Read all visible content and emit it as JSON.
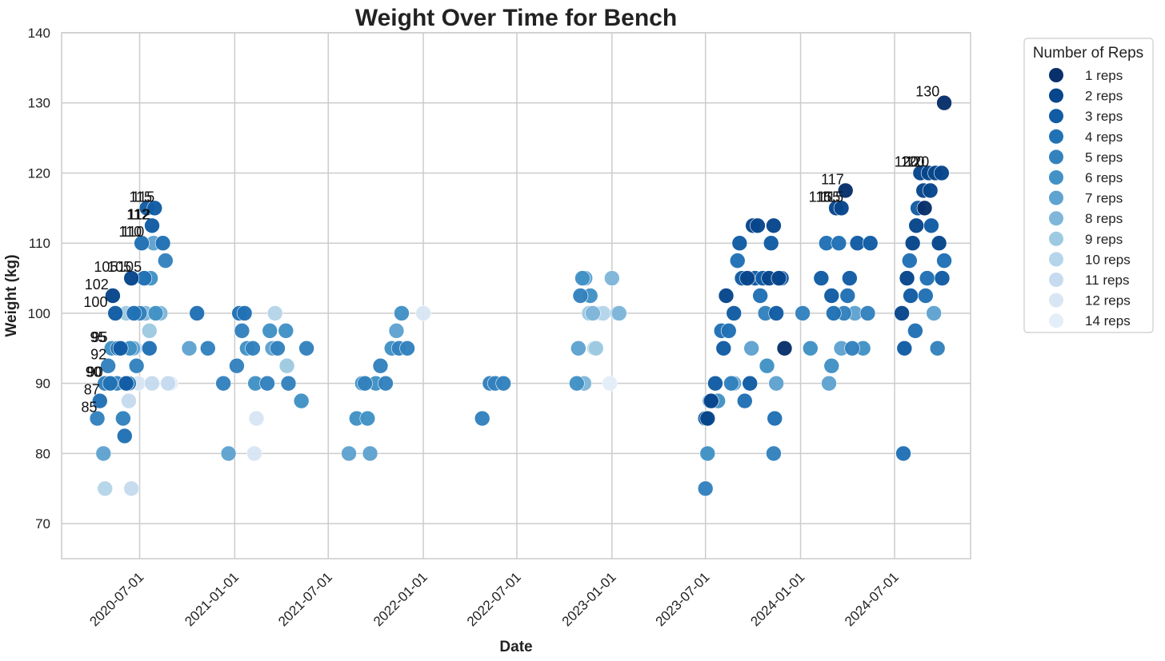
{
  "chart_data": {
    "type": "scatter",
    "title": "Weight Over Time for Bench",
    "xlabel": "Date",
    "ylabel": "Weight (kg)",
    "xlim": [
      "2020-02-01",
      "2024-11-25"
    ],
    "ylim": [
      65,
      140
    ],
    "x_ticks": [
      "2020-07-01",
      "2021-01-01",
      "2021-07-01",
      "2022-01-01",
      "2022-07-01",
      "2023-01-01",
      "2023-07-01",
      "2024-01-01",
      "2024-07-01"
    ],
    "y_ticks": [
      70,
      80,
      90,
      100,
      110,
      120,
      130,
      140
    ],
    "grid": true,
    "legend": {
      "title": "Number of Reps",
      "placement": "outside-right",
      "entries": [
        "1 reps",
        "2 reps",
        "3 reps",
        "4 reps",
        "5 reps",
        "6 reps",
        "7 reps",
        "8 reps",
        "9 reps",
        "10 reps",
        "11 reps",
        "12 reps",
        "14 reps"
      ]
    },
    "colors": {
      "1": "#08306b",
      "2": "#08468c",
      "3": "#115ca5",
      "4": "#2171b5",
      "5": "#3382be",
      "6": "#4292c6",
      "7": "#5fa3d0",
      "8": "#7fb6da",
      "9": "#9ecae1",
      "10": "#b5d5ea",
      "11": "#c6dbef",
      "12": "#d8e6f4",
      "14": "#e4eef8"
    },
    "series": [
      {
        "name": "1 reps",
        "reps": 1,
        "points": [
          [
            "2024-10-05",
            130
          ],
          [
            "2024-08-28",
            115
          ],
          [
            "2024-03-28",
            117.5
          ],
          [
            "2023-12-01",
            95
          ]
        ]
      },
      {
        "name": "2 reps",
        "reps": 2,
        "points": [
          [
            "2020-05-10",
            102.5
          ],
          [
            "2020-06-15",
            105
          ],
          [
            "2023-07-05",
            85
          ],
          [
            "2023-07-12",
            87.5
          ],
          [
            "2023-08-10",
            102.5
          ],
          [
            "2023-09-20",
            105
          ],
          [
            "2023-10-01",
            112.5
          ],
          [
            "2023-10-10",
            112.5
          ],
          [
            "2023-11-01",
            105
          ],
          [
            "2023-11-10",
            112.5
          ],
          [
            "2023-11-20",
            105
          ],
          [
            "2024-03-10",
            115
          ],
          [
            "2024-03-20",
            115
          ],
          [
            "2024-07-15",
            100
          ],
          [
            "2024-07-25",
            105
          ],
          [
            "2024-08-05",
            110
          ],
          [
            "2024-08-12",
            112.5
          ],
          [
            "2024-08-20",
            120
          ],
          [
            "2024-08-26",
            117.5
          ],
          [
            "2024-09-05",
            120
          ],
          [
            "2024-09-08",
            117.5
          ],
          [
            "2024-09-18",
            120
          ],
          [
            "2024-09-25",
            110
          ],
          [
            "2024-09-30",
            120
          ]
        ]
      },
      {
        "name": "3 reps",
        "reps": 3,
        "points": [
          [
            "2020-05-15",
            100
          ],
          [
            "2020-05-25",
            95
          ],
          [
            "2020-06-05",
            90
          ],
          [
            "2020-07-15",
            115
          ],
          [
            "2020-07-25",
            112.5
          ],
          [
            "2020-07-30",
            115
          ],
          [
            "2023-07-01",
            85
          ],
          [
            "2023-07-20",
            90
          ],
          [
            "2023-08-05",
            95
          ],
          [
            "2023-08-25",
            100
          ],
          [
            "2023-09-05",
            110
          ],
          [
            "2023-09-10",
            105
          ],
          [
            "2023-09-25",
            90
          ],
          [
            "2023-10-05",
            105
          ],
          [
            "2023-10-20",
            105
          ],
          [
            "2023-11-05",
            110
          ],
          [
            "2023-11-15",
            100
          ],
          [
            "2023-11-25",
            105
          ],
          [
            "2024-02-10",
            105
          ],
          [
            "2024-03-01",
            102.5
          ],
          [
            "2024-04-05",
            105
          ],
          [
            "2024-04-20",
            110
          ],
          [
            "2024-05-15",
            110
          ],
          [
            "2024-07-20",
            95
          ],
          [
            "2024-08-01",
            102.5
          ],
          [
            "2024-08-15",
            115
          ],
          [
            "2024-09-10",
            112.5
          ],
          [
            "2024-10-01",
            105
          ]
        ]
      },
      {
        "name": "4 reps",
        "reps": 4,
        "points": [
          [
            "2020-04-15",
            87.5
          ],
          [
            "2020-05-05",
            90
          ],
          [
            "2020-05-20",
            95
          ],
          [
            "2020-06-02",
            82.5
          ],
          [
            "2020-06-20",
            100
          ],
          [
            "2020-07-05",
            110
          ],
          [
            "2020-07-10",
            105
          ],
          [
            "2020-07-20",
            95
          ],
          [
            "2020-08-15",
            110
          ],
          [
            "2020-10-20",
            100
          ],
          [
            "2021-01-10",
            100
          ],
          [
            "2021-01-20",
            100
          ],
          [
            "2023-07-10",
            87.5
          ],
          [
            "2023-08-01",
            97.5
          ],
          [
            "2023-08-15",
            97.5
          ],
          [
            "2023-09-01",
            107.5
          ],
          [
            "2023-09-15",
            87.5
          ],
          [
            "2023-10-15",
            102.5
          ],
          [
            "2023-11-12",
            85
          ],
          [
            "2024-02-20",
            110
          ],
          [
            "2024-03-05",
            100
          ],
          [
            "2024-03-15",
            110
          ],
          [
            "2024-04-01",
            102.5
          ],
          [
            "2024-07-18",
            80
          ],
          [
            "2024-07-30",
            107.5
          ],
          [
            "2024-08-10",
            97.5
          ],
          [
            "2024-08-30",
            102.5
          ],
          [
            "2024-09-02",
            105
          ],
          [
            "2024-10-05",
            107.5
          ]
        ]
      },
      {
        "name": "5 reps",
        "reps": 5,
        "points": [
          [
            "2020-04-10",
            85
          ],
          [
            "2020-04-25",
            90
          ],
          [
            "2020-05-01",
            92.5
          ],
          [
            "2020-05-18",
            90
          ],
          [
            "2020-05-30",
            85
          ],
          [
            "2020-06-10",
            90
          ],
          [
            "2020-06-25",
            92.5
          ],
          [
            "2020-07-01",
            100
          ],
          [
            "2020-08-20",
            107.5
          ],
          [
            "2020-11-10",
            95
          ],
          [
            "2020-12-10",
            90
          ],
          [
            "2021-01-05",
            92.5
          ],
          [
            "2021-01-15",
            97.5
          ],
          [
            "2021-02-05",
            95
          ],
          [
            "2021-03-05",
            90
          ],
          [
            "2021-03-25",
            95
          ],
          [
            "2021-04-15",
            90
          ],
          [
            "2021-05-20",
            95
          ],
          [
            "2021-09-10",
            90
          ],
          [
            "2021-10-10",
            92.5
          ],
          [
            "2021-10-20",
            90
          ],
          [
            "2021-11-15",
            95
          ],
          [
            "2021-12-01",
            95
          ],
          [
            "2022-04-25",
            85
          ],
          [
            "2022-05-10",
            90
          ],
          [
            "2022-05-20",
            90
          ],
          [
            "2022-06-05",
            90
          ],
          [
            "2022-11-01",
            102.5
          ],
          [
            "2023-07-01",
            75
          ],
          [
            "2023-08-20",
            90
          ],
          [
            "2023-10-25",
            100
          ],
          [
            "2023-11-10",
            80
          ],
          [
            "2024-01-05",
            100
          ],
          [
            "2024-03-25",
            100
          ],
          [
            "2024-04-10",
            95
          ],
          [
            "2024-05-10",
            100
          ],
          [
            "2024-09-22",
            95
          ]
        ]
      },
      {
        "name": "6 reps",
        "reps": 6,
        "points": [
          [
            "2020-05-08",
            95
          ],
          [
            "2020-06-12",
            95
          ],
          [
            "2020-06-28",
            100
          ],
          [
            "2020-07-22",
            105
          ],
          [
            "2020-08-01",
            100
          ],
          [
            "2021-01-25",
            95
          ],
          [
            "2021-02-10",
            90
          ],
          [
            "2021-03-10",
            97.5
          ],
          [
            "2021-04-10",
            97.5
          ],
          [
            "2021-05-10",
            87.5
          ],
          [
            "2021-08-25",
            85
          ],
          [
            "2021-09-05",
            90
          ],
          [
            "2021-09-15",
            85
          ],
          [
            "2021-10-01",
            90
          ],
          [
            "2021-11-01",
            95
          ],
          [
            "2021-11-20",
            100
          ],
          [
            "2022-10-25",
            90
          ],
          [
            "2022-11-05",
            105
          ],
          [
            "2022-11-20",
            102.5
          ],
          [
            "2023-07-05",
            80
          ],
          [
            "2023-07-25",
            87.5
          ],
          [
            "2023-10-28",
            92.5
          ],
          [
            "2024-01-20",
            95
          ],
          [
            "2024-03-01",
            92.5
          ],
          [
            "2024-05-01",
            95
          ]
        ]
      },
      {
        "name": "7 reps",
        "reps": 7,
        "points": [
          [
            "2020-04-22",
            80
          ],
          [
            "2020-06-18",
            95
          ],
          [
            "2020-07-28",
            110
          ],
          [
            "2020-10-05",
            95
          ],
          [
            "2020-12-20",
            80
          ],
          [
            "2021-03-15",
            95
          ],
          [
            "2021-08-10",
            80
          ],
          [
            "2021-09-20",
            80
          ],
          [
            "2021-11-10",
            97.5
          ],
          [
            "2022-10-28",
            95
          ],
          [
            "2022-11-10",
            105
          ],
          [
            "2023-08-25",
            90
          ],
          [
            "2023-09-28",
            95
          ],
          [
            "2023-11-15",
            90
          ],
          [
            "2024-02-25",
            90
          ],
          [
            "2024-03-20",
            95
          ],
          [
            "2024-04-15",
            100
          ],
          [
            "2024-09-15",
            100
          ]
        ]
      },
      {
        "name": "8 reps",
        "reps": 8,
        "points": [
          [
            "2020-07-08",
            105
          ],
          [
            "2020-07-12",
            100
          ],
          [
            "2020-08-10",
            100
          ],
          [
            "2022-11-08",
            90
          ],
          [
            "2022-11-25",
            100
          ],
          [
            "2023-01-01",
            105
          ],
          [
            "2023-01-15",
            100
          ]
        ]
      },
      {
        "name": "9 reps",
        "reps": 9,
        "points": [
          [
            "2020-04-28",
            90
          ],
          [
            "2020-06-05",
            100
          ],
          [
            "2020-07-20",
            97.5
          ],
          [
            "2021-04-12",
            92.5
          ],
          [
            "2022-11-18",
            100
          ],
          [
            "2022-12-01",
            95
          ],
          [
            "2023-01-12",
            100
          ]
        ]
      },
      {
        "name": "10 reps",
        "reps": 10,
        "points": [
          [
            "2020-04-25",
            75
          ],
          [
            "2020-06-22",
            95
          ],
          [
            "2020-07-02",
            100
          ],
          [
            "2021-03-20",
            100
          ],
          [
            "2022-11-28",
            95
          ],
          [
            "2022-12-15",
            100
          ]
        ]
      },
      {
        "name": "11 reps",
        "reps": 11,
        "points": [
          [
            "2020-06-10",
            87.5
          ],
          [
            "2020-06-15",
            75
          ],
          [
            "2020-07-25",
            90
          ],
          [
            "2020-08-25",
            90
          ],
          [
            "2022-12-10",
            100
          ]
        ]
      },
      {
        "name": "12 reps",
        "reps": 12,
        "points": [
          [
            "2020-06-28",
            90
          ],
          [
            "2021-02-12",
            85
          ],
          [
            "2021-02-08",
            80
          ],
          [
            "2022-01-01",
            100
          ]
        ]
      },
      {
        "name": "14 reps",
        "reps": 14,
        "points": [
          [
            "2020-08-30",
            90
          ],
          [
            "2022-12-28",
            90
          ]
        ]
      }
    ],
    "annotations": [
      {
        "text": "85",
        "x": "2020-04-10",
        "y": 85
      },
      {
        "text": "87",
        "x": "2020-04-15",
        "y": 87.5
      },
      {
        "text": "90",
        "x": "2020-04-18",
        "y": 90
      },
      {
        "text": "90",
        "x": "2020-04-21",
        "y": 90
      },
      {
        "text": "92",
        "x": "2020-04-28",
        "y": 92.5
      },
      {
        "text": "95",
        "x": "2020-04-27",
        "y": 95
      },
      {
        "text": "95",
        "x": "2020-04-30",
        "y": 95
      },
      {
        "text": "100",
        "x": "2020-04-30",
        "y": 100
      },
      {
        "text": "102",
        "x": "2020-05-02",
        "y": 102.5
      },
      {
        "text": "105",
        "x": "2020-05-20",
        "y": 105
      },
      {
        "text": "105",
        "x": "2020-06-15",
        "y": 105
      },
      {
        "text": "105",
        "x": "2020-07-05",
        "y": 105
      },
      {
        "text": "110",
        "x": "2020-07-05",
        "y": 110
      },
      {
        "text": "110",
        "x": "2020-07-10",
        "y": 110
      },
      {
        "text": "112",
        "x": "2020-07-20",
        "y": 112.5
      },
      {
        "text": "112",
        "x": "2020-07-22",
        "y": 112.5
      },
      {
        "text": "115",
        "x": "2020-07-25",
        "y": 115
      },
      {
        "text": "115",
        "x": "2020-07-30",
        "y": 115
      },
      {
        "text": "115",
        "x": "2024-03-01",
        "y": 115
      },
      {
        "text": "115",
        "x": "2024-03-18",
        "y": 115
      },
      {
        "text": "115",
        "x": "2024-03-24",
        "y": 115
      },
      {
        "text": "117",
        "x": "2024-03-25",
        "y": 117.5
      },
      {
        "text": "120",
        "x": "2024-08-16",
        "y": 120
      },
      {
        "text": "120",
        "x": "2024-08-28",
        "y": 120
      },
      {
        "text": "120",
        "x": "2024-09-06",
        "y": 120
      },
      {
        "text": "130",
        "x": "2024-09-26",
        "y": 130
      }
    ]
  }
}
